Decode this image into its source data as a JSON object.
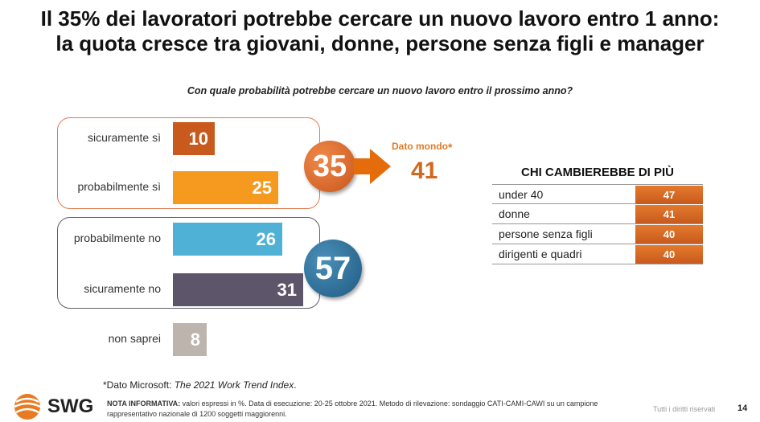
{
  "title": {
    "line1": "Il 35% dei lavoratori potrebbe cercare un nuovo lavoro entro 1 anno:",
    "line2": "la quota cresce tra giovani, donne, persone senza figli e manager"
  },
  "colors": {
    "accent": "#e46c0a",
    "orange_dark": "#c85a1e",
    "orange_light": "#f59a1f",
    "blue": "#4fb1d6",
    "purple": "#5d5569",
    "grey": "#bdb4ae",
    "circle_blue": "#2f6e97"
  },
  "chart_data": {
    "type": "bar",
    "orientation": "horizontal",
    "title": "Con quale probabilità potrebbe cercare un nuovo lavoro entro il prossimo anno?",
    "unit": "%",
    "xlim": [
      0,
      40
    ],
    "categories": [
      "sicuramente sì",
      "probabilmente sì",
      "probabilmente no",
      "sicuramente no",
      "non saprei"
    ],
    "values": [
      10,
      25,
      26,
      31,
      8
    ],
    "groups": [
      {
        "name": "sì",
        "total": 35,
        "members": [
          "sicuramente sì",
          "probabilmente sì"
        ]
      },
      {
        "name": "no",
        "total": 57,
        "members": [
          "probabilmente no",
          "sicuramente no"
        ]
      }
    ],
    "annotation": {
      "label": "Dato mondo",
      "star": "*",
      "value": 41
    }
  },
  "table": {
    "title": "CHI CAMBIEREBBE DI PIÙ",
    "rows": [
      {
        "label": "under 40",
        "value": 47
      },
      {
        "label": "donne",
        "value": 41
      },
      {
        "label": "persone senza figli",
        "value": 40
      },
      {
        "label": "dirigenti e quadri",
        "value": 40
      }
    ]
  },
  "footer": {
    "source_prefix": "*Dato Microsoft: ",
    "source_title": "The 2021 Work Trend Index",
    "source_suffix": ".",
    "nota_label": "NOTA INFORMATIVA:",
    "nota_text": " valori espressi in %. Data di esecuzione: 20-25 ottobre 2021. Metodo di rilevazione: sondaggio CATI-CAMI-CAWI su un campione rappresentativo nazionale di 1200 soggetti maggiorenni.",
    "rights": "Tutti i diritti riservati",
    "page": "14",
    "logo": "SWG"
  }
}
